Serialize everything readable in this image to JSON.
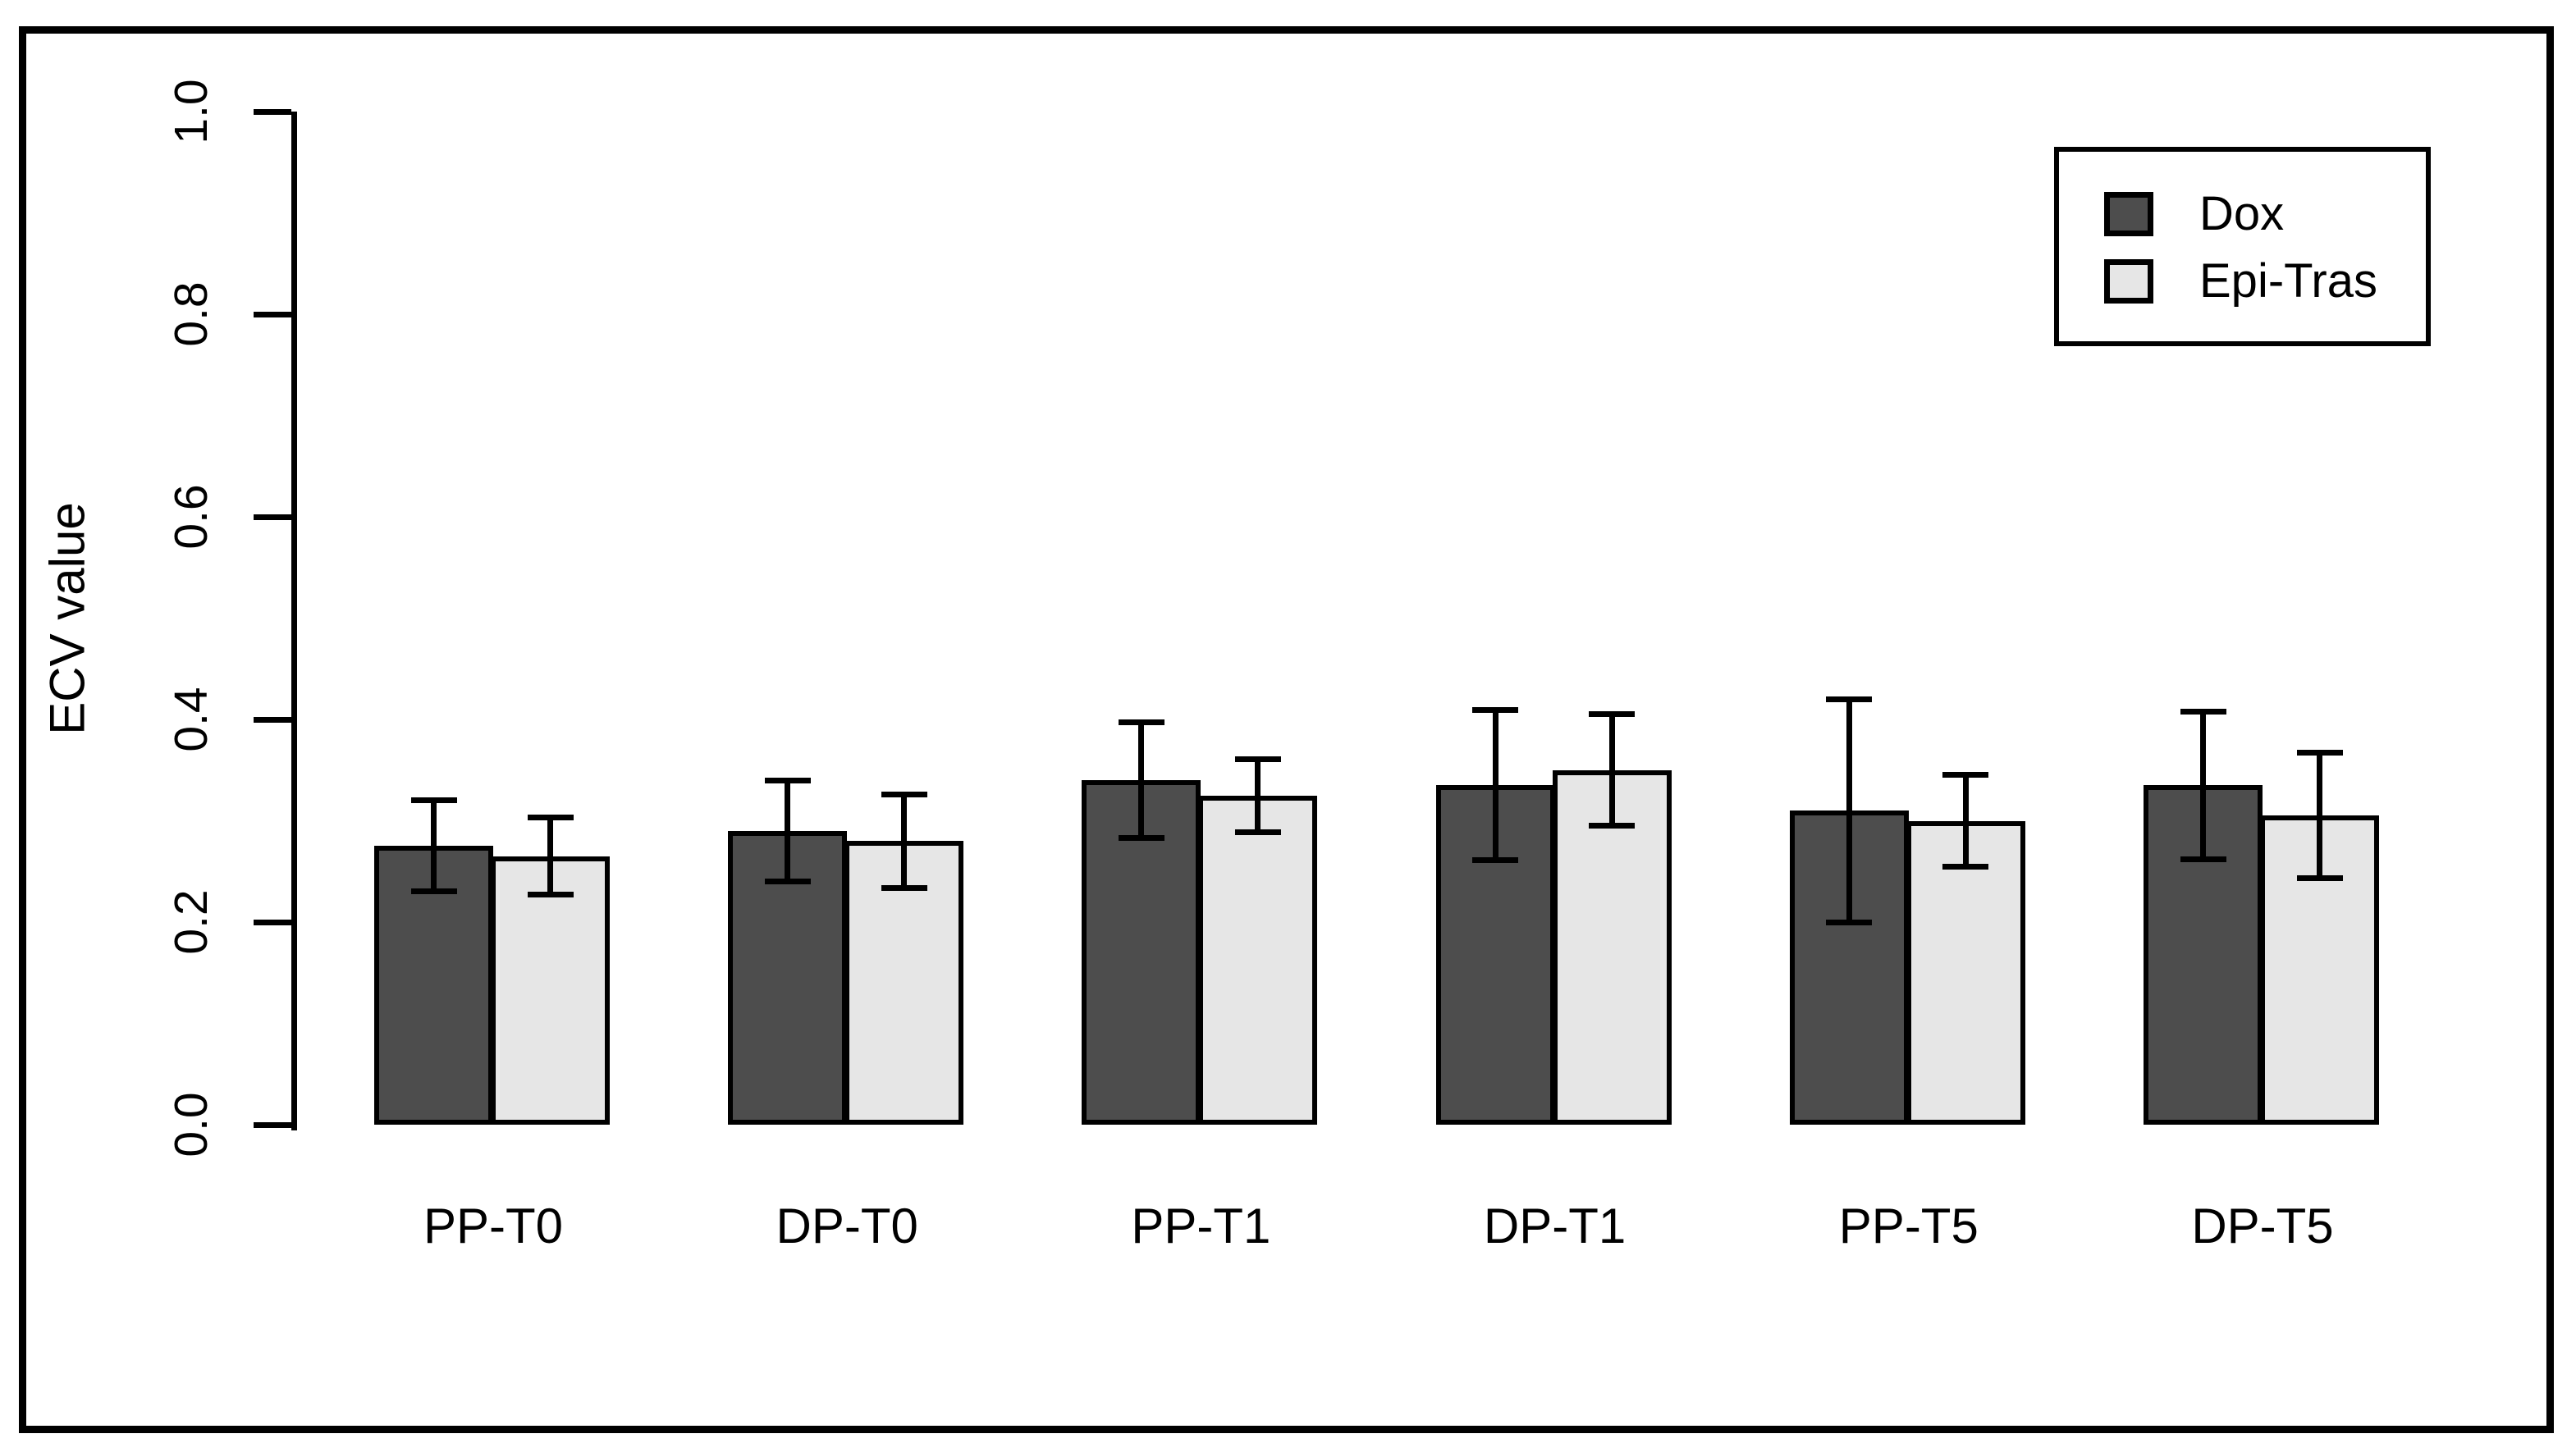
{
  "figure": {
    "background_color": "#ffffff",
    "frame_color": "#000000",
    "text_color": "#000000"
  },
  "chart_data": {
    "type": "bar",
    "title": "",
    "xlabel": "",
    "ylabel": "ECV value",
    "categories": [
      "PP-T0",
      "DP-T0",
      "PP-T1",
      "DP-T1",
      "PP-T5",
      "DP-T5"
    ],
    "series": [
      {
        "name": "Dox",
        "color": "#4d4d4d",
        "values": [
          0.275,
          0.29,
          0.34,
          0.335,
          0.31,
          0.335
        ],
        "errors": [
          0.045,
          0.05,
          0.057,
          0.074,
          0.11,
          0.073
        ]
      },
      {
        "name": "Epi-Tras",
        "color": "#e6e6e6",
        "values": [
          0.265,
          0.28,
          0.325,
          0.35,
          0.3,
          0.305
        ],
        "errors": [
          0.038,
          0.046,
          0.036,
          0.055,
          0.045,
          0.062
        ]
      }
    ],
    "ylim": [
      0.0,
      1.0
    ],
    "ytick_labels": [
      "0.0",
      "0.2",
      "0.4",
      "0.6",
      "0.8",
      "1.0"
    ],
    "grid": false,
    "error_bars": true,
    "bar_outline_color": "#000000",
    "legend_position": "top-right"
  },
  "legend": {
    "items": [
      {
        "label": "Dox",
        "color": "#4d4d4d"
      },
      {
        "label": "Epi-Tras",
        "color": "#e6e6e6"
      }
    ]
  }
}
